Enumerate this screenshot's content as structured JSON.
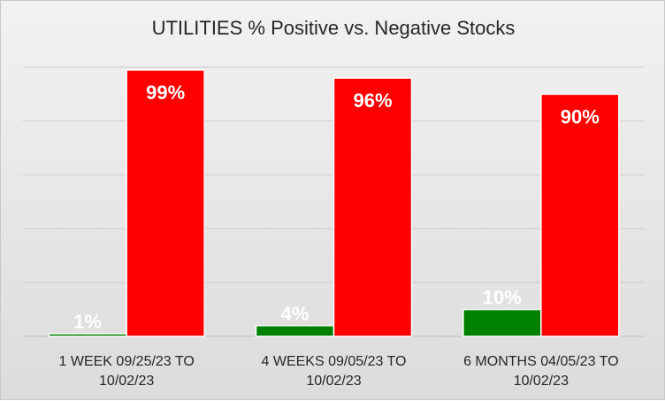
{
  "chart_data": {
    "type": "bar",
    "title": "UTILITIES % Positive vs. Negative Stocks",
    "categories": [
      [
        "1 WEEK 09/25/23 TO",
        "10/02/23"
      ],
      [
        "4 WEEKS 09/05/23 TO",
        "10/02/23"
      ],
      [
        "6 MONTHS 04/05/23 TO",
        "10/02/23"
      ]
    ],
    "series": [
      {
        "values": [
          1,
          4,
          10
        ],
        "labels": [
          "1%",
          "4%",
          "10%"
        ],
        "color": "#008000"
      },
      {
        "values": [
          99,
          96,
          90
        ],
        "labels": [
          "99%",
          "96%",
          "90%"
        ],
        "color": "#ff0000"
      }
    ],
    "ylim": [
      0,
      100
    ],
    "grid": true,
    "legend": "none"
  }
}
